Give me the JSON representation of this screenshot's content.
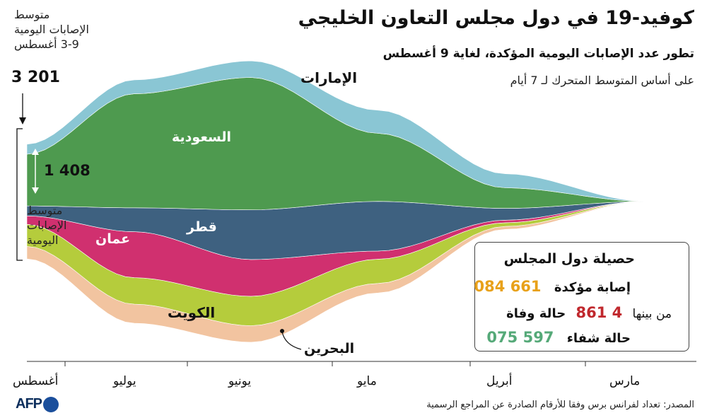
{
  "header": {
    "title": "كوفيد-19 في دول مجلس التعاون الخليجي",
    "subtitle": "تطور عدد الإصابات اليومية المؤكدة، لغاية 9 أغسطس",
    "note": "على أساس المتوسط المتحرك لـ 7 أيام"
  },
  "annotations": {
    "avg_top_line1": "متوسط",
    "avg_top_line2": "الإصابات اليومية",
    "avg_top_line3": "3-9 أغسطس",
    "avg_top_value": "3 201",
    "avg_left_line1": "متوسط",
    "avg_left_line2": "الإصابات",
    "avg_left_line3": "اليومية",
    "saudi_avg_value": "1 408"
  },
  "totals": {
    "title": "حصيلة دول المجلس",
    "cases_label": "إصابة مؤكدة",
    "cases_value": "661 084",
    "deaths_prefix": "من بينها",
    "deaths_label": "حالة وفاة",
    "deaths_value": "4 861",
    "recovered_label": "حالة شفاء",
    "recovered_value": "597 075"
  },
  "source": "المصدر: تعداد لفرانس برس وفقا للأرقام الصادرة عن المراجع الرسمية",
  "logo_text": "AFP",
  "colors": {
    "uae": "#8ac6d4",
    "saudi": "#4e9a4f",
    "qatar": "#3e6180",
    "oman": "#d0306f",
    "kuwait": "#b5cc3c",
    "bahrain": "#f2c4a0",
    "deaths": "#c0282d",
    "cases": "#e8a11a",
    "recovered": "#55a978"
  },
  "chart_data": {
    "type": "area",
    "layout": "streamgraph",
    "x_axis": "time, newest on the left",
    "x": [
      "مارس",
      "أبريل",
      "مايو",
      "يونيو",
      "يوليو",
      "أغسطس"
    ],
    "series": [
      {
        "name": "البحرين",
        "values": [
          5,
          80,
          260,
          450,
          520,
          340
        ]
      },
      {
        "name": "الكويت",
        "values": [
          5,
          100,
          660,
          800,
          720,
          600
        ]
      },
      {
        "name": "عمان",
        "values": [
          3,
          70,
          220,
          1000,
          1250,
          230
        ]
      },
      {
        "name": "قطر",
        "values": [
          3,
          320,
          1350,
          1350,
          650,
          270
        ]
      },
      {
        "name": "السعودية",
        "values": [
          5,
          560,
          1850,
          3600,
          3100,
          1408
        ]
      },
      {
        "name": "الإمارات",
        "values": [
          5,
          380,
          630,
          450,
          380,
          270
        ]
      }
    ],
    "avg_daily_cases_aug_3_9": 3201
  }
}
